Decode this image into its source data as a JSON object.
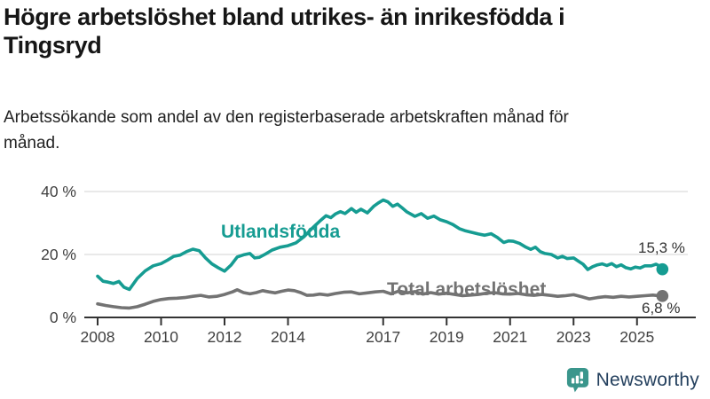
{
  "header": {
    "title": "Högre arbetslöshet bland utrikes- än inrikesfödda i Tingsryd",
    "subtitle": "Arbetssökande som andel av den registerbaserade arbetskraften månad för månad."
  },
  "footer": {
    "brand": "Newsworthy"
  },
  "colors": {
    "foreign_born_line": "#169c92",
    "total_line": "#737373",
    "axis_text": "#404040",
    "gridline": "#dcdcdc",
    "axis_line": "#333333",
    "brand_navy": "#24405e",
    "brand_teal": "#3a968c"
  },
  "chart_data": {
    "type": "line",
    "title": "Högre arbetslöshet bland utrikes- än inrikesfödda i Tingsryd",
    "subtitle": "Arbetssökande som andel av den registerbaserade arbetskraften månad för månad.",
    "grid": "horizontal-only",
    "legend_position": "inline-labels",
    "y_axis": {
      "ticks": [
        0,
        20,
        40
      ],
      "unit": "%",
      "range": [
        0,
        42
      ]
    },
    "x_axis": {
      "ticks": [
        2008,
        2010,
        2012,
        2014,
        2017,
        2019,
        2021,
        2023,
        2025
      ],
      "range": [
        2007.6,
        2026.4
      ]
    },
    "series": [
      {
        "name": "Utlandsfödda",
        "label": "Utlandsfödda",
        "color": "#169c92",
        "end_label": "15,3 %",
        "end_value": 15.3,
        "points": [
          [
            2008.0,
            13.1
          ],
          [
            2008.17,
            11.5
          ],
          [
            2008.33,
            11.2
          ],
          [
            2008.5,
            10.8
          ],
          [
            2008.67,
            11.4
          ],
          [
            2008.83,
            9.6
          ],
          [
            2009.0,
            8.9
          ],
          [
            2009.25,
            12.4
          ],
          [
            2009.5,
            14.8
          ],
          [
            2009.75,
            16.4
          ],
          [
            2010.0,
            17.1
          ],
          [
            2010.2,
            18.2
          ],
          [
            2010.4,
            19.4
          ],
          [
            2010.6,
            19.8
          ],
          [
            2010.8,
            20.9
          ],
          [
            2011.0,
            21.7
          ],
          [
            2011.2,
            21.2
          ],
          [
            2011.4,
            18.9
          ],
          [
            2011.6,
            17.0
          ],
          [
            2011.8,
            15.8
          ],
          [
            2012.0,
            14.7
          ],
          [
            2012.2,
            16.6
          ],
          [
            2012.4,
            19.2
          ],
          [
            2012.6,
            19.9
          ],
          [
            2012.8,
            20.3
          ],
          [
            2012.95,
            18.9
          ],
          [
            2013.1,
            19.1
          ],
          [
            2013.3,
            20.2
          ],
          [
            2013.5,
            21.4
          ],
          [
            2013.75,
            22.3
          ],
          [
            2014.0,
            22.8
          ],
          [
            2014.25,
            23.7
          ],
          [
            2014.5,
            25.6
          ],
          [
            2014.75,
            28.2
          ],
          [
            2015.0,
            30.6
          ],
          [
            2015.2,
            32.3
          ],
          [
            2015.35,
            31.7
          ],
          [
            2015.5,
            32.9
          ],
          [
            2015.65,
            33.6
          ],
          [
            2015.8,
            33.0
          ],
          [
            2016.0,
            34.6
          ],
          [
            2016.15,
            33.4
          ],
          [
            2016.3,
            34.4
          ],
          [
            2016.5,
            33.2
          ],
          [
            2016.7,
            35.3
          ],
          [
            2016.85,
            36.4
          ],
          [
            2017.0,
            37.3
          ],
          [
            2017.15,
            36.7
          ],
          [
            2017.3,
            35.3
          ],
          [
            2017.45,
            36.0
          ],
          [
            2017.6,
            34.8
          ],
          [
            2017.75,
            33.5
          ],
          [
            2018.0,
            32.1
          ],
          [
            2018.2,
            33.0
          ],
          [
            2018.4,
            31.5
          ],
          [
            2018.6,
            32.2
          ],
          [
            2018.8,
            31.0
          ],
          [
            2019.0,
            30.4
          ],
          [
            2019.2,
            29.5
          ],
          [
            2019.4,
            28.2
          ],
          [
            2019.6,
            27.5
          ],
          [
            2019.8,
            27.0
          ],
          [
            2020.0,
            26.5
          ],
          [
            2020.2,
            26.1
          ],
          [
            2020.4,
            26.6
          ],
          [
            2020.6,
            25.4
          ],
          [
            2020.8,
            23.8
          ],
          [
            2020.95,
            24.3
          ],
          [
            2021.1,
            24.2
          ],
          [
            2021.3,
            23.5
          ],
          [
            2021.5,
            22.3
          ],
          [
            2021.65,
            21.6
          ],
          [
            2021.8,
            22.3
          ],
          [
            2021.95,
            20.9
          ],
          [
            2022.1,
            20.3
          ],
          [
            2022.3,
            20.0
          ],
          [
            2022.5,
            18.9
          ],
          [
            2022.65,
            19.4
          ],
          [
            2022.8,
            18.7
          ],
          [
            2023.0,
            18.9
          ],
          [
            2023.15,
            17.9
          ],
          [
            2023.3,
            16.9
          ],
          [
            2023.45,
            15.2
          ],
          [
            2023.6,
            16.1
          ],
          [
            2023.75,
            16.7
          ],
          [
            2023.9,
            17.0
          ],
          [
            2024.05,
            16.5
          ],
          [
            2024.2,
            17.1
          ],
          [
            2024.35,
            16.1
          ],
          [
            2024.5,
            16.7
          ],
          [
            2024.65,
            15.8
          ],
          [
            2024.8,
            15.4
          ],
          [
            2024.95,
            16.0
          ],
          [
            2025.1,
            15.7
          ],
          [
            2025.25,
            16.4
          ],
          [
            2025.45,
            16.4
          ],
          [
            2025.6,
            16.9
          ],
          [
            2025.7,
            16.4
          ],
          [
            2025.8,
            15.3
          ]
        ]
      },
      {
        "name": "Total arbetslöshet",
        "label": "Total arbetslöshet",
        "color": "#737373",
        "end_label": "6,8 %",
        "end_value": 6.8,
        "points": [
          [
            2008.0,
            4.3
          ],
          [
            2008.25,
            3.8
          ],
          [
            2008.5,
            3.4
          ],
          [
            2008.75,
            3.1
          ],
          [
            2009.0,
            3.0
          ],
          [
            2009.25,
            3.4
          ],
          [
            2009.5,
            4.2
          ],
          [
            2009.75,
            5.1
          ],
          [
            2010.0,
            5.7
          ],
          [
            2010.25,
            6.0
          ],
          [
            2010.5,
            6.1
          ],
          [
            2010.75,
            6.3
          ],
          [
            2011.0,
            6.7
          ],
          [
            2011.25,
            7.0
          ],
          [
            2011.5,
            6.5
          ],
          [
            2011.75,
            6.7
          ],
          [
            2012.0,
            7.3
          ],
          [
            2012.25,
            8.1
          ],
          [
            2012.4,
            8.8
          ],
          [
            2012.6,
            7.9
          ],
          [
            2012.8,
            7.5
          ],
          [
            2013.0,
            7.9
          ],
          [
            2013.2,
            8.5
          ],
          [
            2013.4,
            8.1
          ],
          [
            2013.6,
            7.8
          ],
          [
            2013.8,
            8.3
          ],
          [
            2014.0,
            8.7
          ],
          [
            2014.2,
            8.5
          ],
          [
            2014.4,
            7.9
          ],
          [
            2014.6,
            7.0
          ],
          [
            2014.8,
            7.1
          ],
          [
            2015.0,
            7.4
          ],
          [
            2015.25,
            7.1
          ],
          [
            2015.5,
            7.6
          ],
          [
            2015.75,
            8.0
          ],
          [
            2016.0,
            8.1
          ],
          [
            2016.25,
            7.5
          ],
          [
            2016.5,
            7.8
          ],
          [
            2016.75,
            8.1
          ],
          [
            2017.0,
            8.3
          ],
          [
            2017.25,
            7.5
          ],
          [
            2017.5,
            8.4
          ],
          [
            2017.75,
            7.8
          ],
          [
            2018.0,
            8.2
          ],
          [
            2018.25,
            7.4
          ],
          [
            2018.5,
            7.9
          ],
          [
            2018.75,
            7.4
          ],
          [
            2019.0,
            7.7
          ],
          [
            2019.25,
            7.3
          ],
          [
            2019.5,
            6.9
          ],
          [
            2019.75,
            7.1
          ],
          [
            2020.0,
            7.3
          ],
          [
            2020.25,
            7.7
          ],
          [
            2020.5,
            7.9
          ],
          [
            2020.75,
            7.5
          ],
          [
            2021.0,
            7.4
          ],
          [
            2021.25,
            7.6
          ],
          [
            2021.5,
            7.2
          ],
          [
            2021.75,
            7.0
          ],
          [
            2022.0,
            7.3
          ],
          [
            2022.25,
            7.0
          ],
          [
            2022.5,
            6.7
          ],
          [
            2022.75,
            6.9
          ],
          [
            2023.0,
            7.2
          ],
          [
            2023.25,
            6.6
          ],
          [
            2023.5,
            5.9
          ],
          [
            2023.75,
            6.3
          ],
          [
            2024.0,
            6.6
          ],
          [
            2024.25,
            6.4
          ],
          [
            2024.5,
            6.7
          ],
          [
            2024.75,
            6.5
          ],
          [
            2025.0,
            6.7
          ],
          [
            2025.25,
            6.9
          ],
          [
            2025.5,
            7.1
          ],
          [
            2025.8,
            6.8
          ]
        ]
      }
    ]
  }
}
